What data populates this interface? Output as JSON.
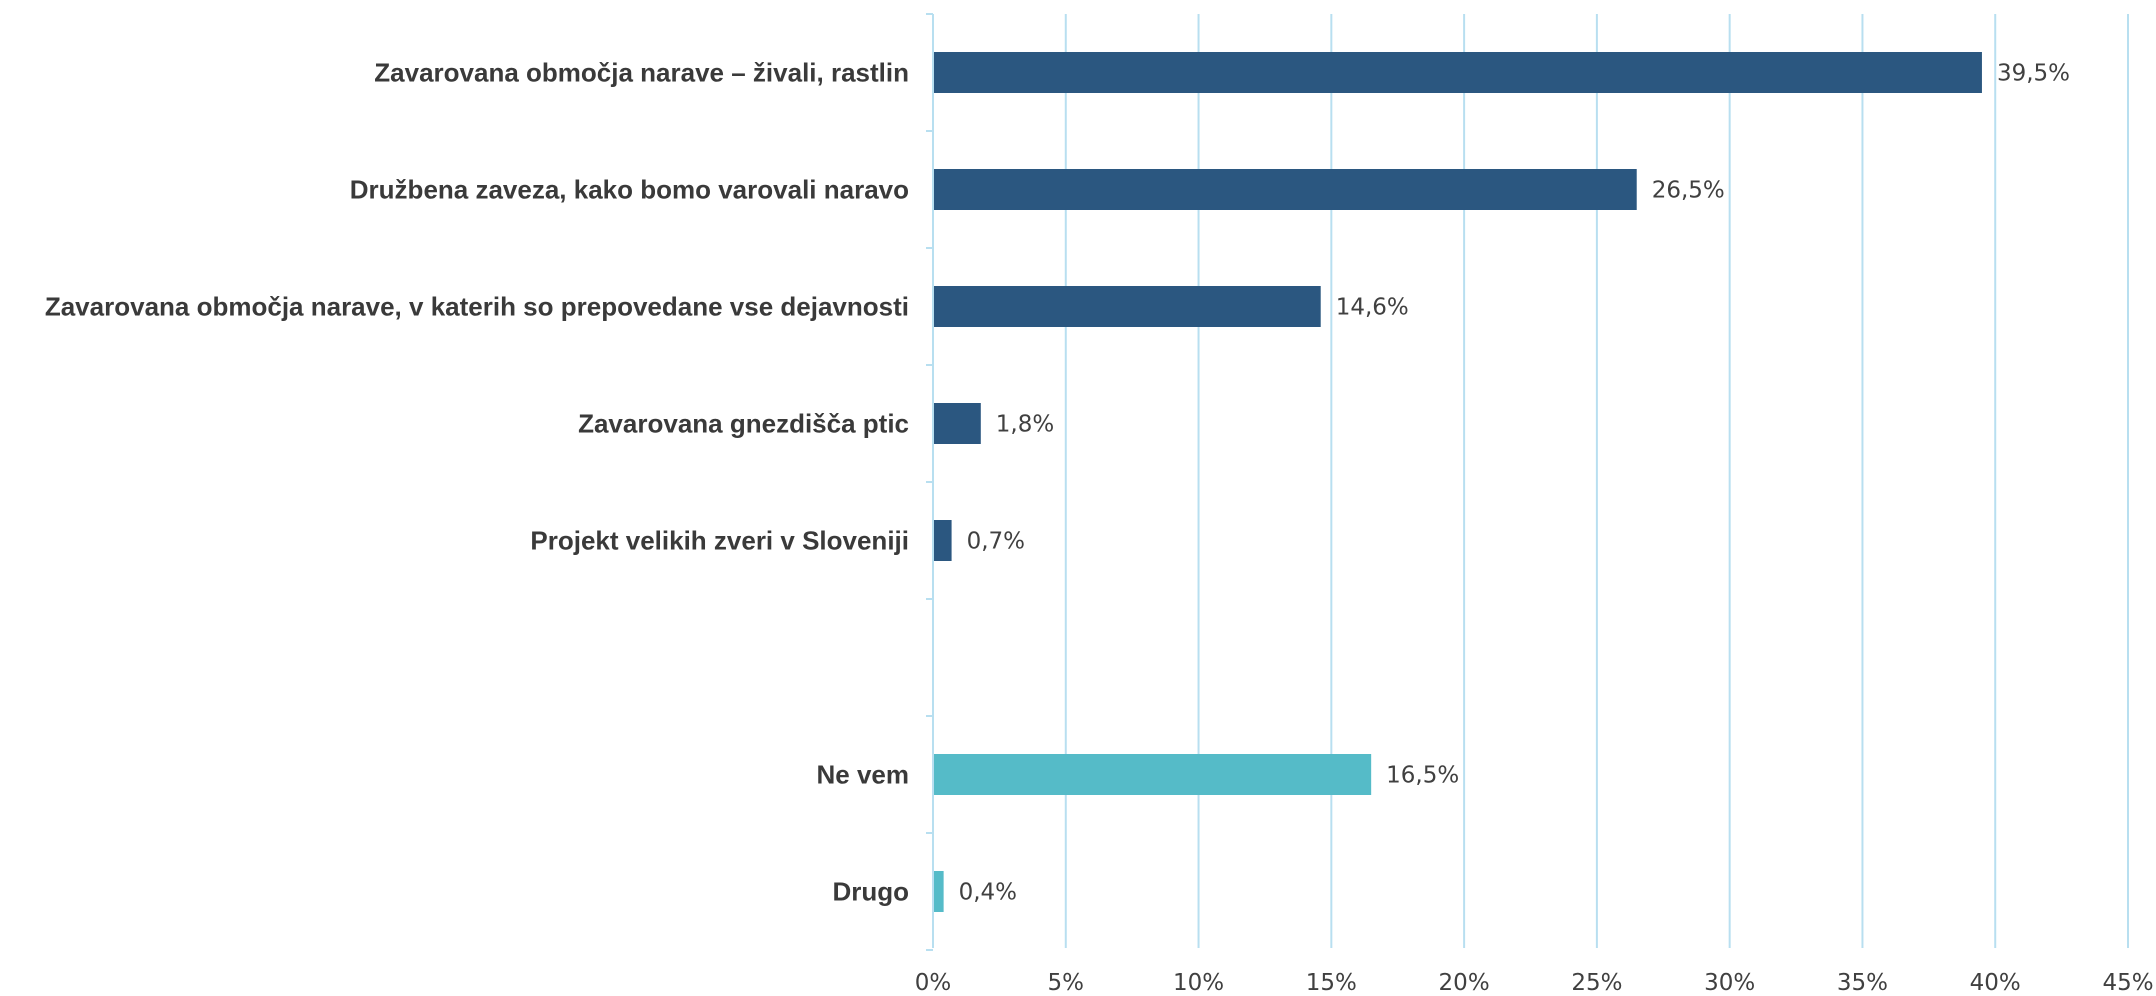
{
  "chart_data": {
    "type": "bar",
    "orientation": "horizontal",
    "categories": [
      "Zavarovana območja narave – živali, rastlin",
      "Družbena zaveza, kako bomo varovali naravo",
      "Zavarovana območja narave, v katerih so prepovedane vse dejavnosti",
      "Zavarovana gnezdišča ptic",
      "Projekt velikih zveri v Sloveniji",
      "",
      "Ne vem",
      "Drugo"
    ],
    "values": [
      39.5,
      26.5,
      14.6,
      1.8,
      0.7,
      null,
      16.5,
      0.4
    ],
    "value_labels": [
      "39,5%",
      "26,5%",
      "14,6%",
      "1,8%",
      "0,7%",
      "",
      "16,5%",
      "0,4%"
    ],
    "bar_colors": [
      "#2b5780",
      "#2b5780",
      "#2b5780",
      "#2b5780",
      "#2b5780",
      null,
      "#55bbc8",
      "#55bbc8"
    ],
    "xlim": [
      0,
      45
    ],
    "x_ticks": [
      0,
      5,
      10,
      15,
      20,
      25,
      30,
      35,
      40,
      45
    ],
    "x_tick_labels": [
      "0%",
      "5%",
      "10%",
      "15%",
      "20%",
      "25%",
      "30%",
      "35%",
      "40%",
      "45%"
    ],
    "grid": true,
    "gridline_color": "#b8dff0",
    "title": "",
    "xlabel": "",
    "ylabel": ""
  }
}
